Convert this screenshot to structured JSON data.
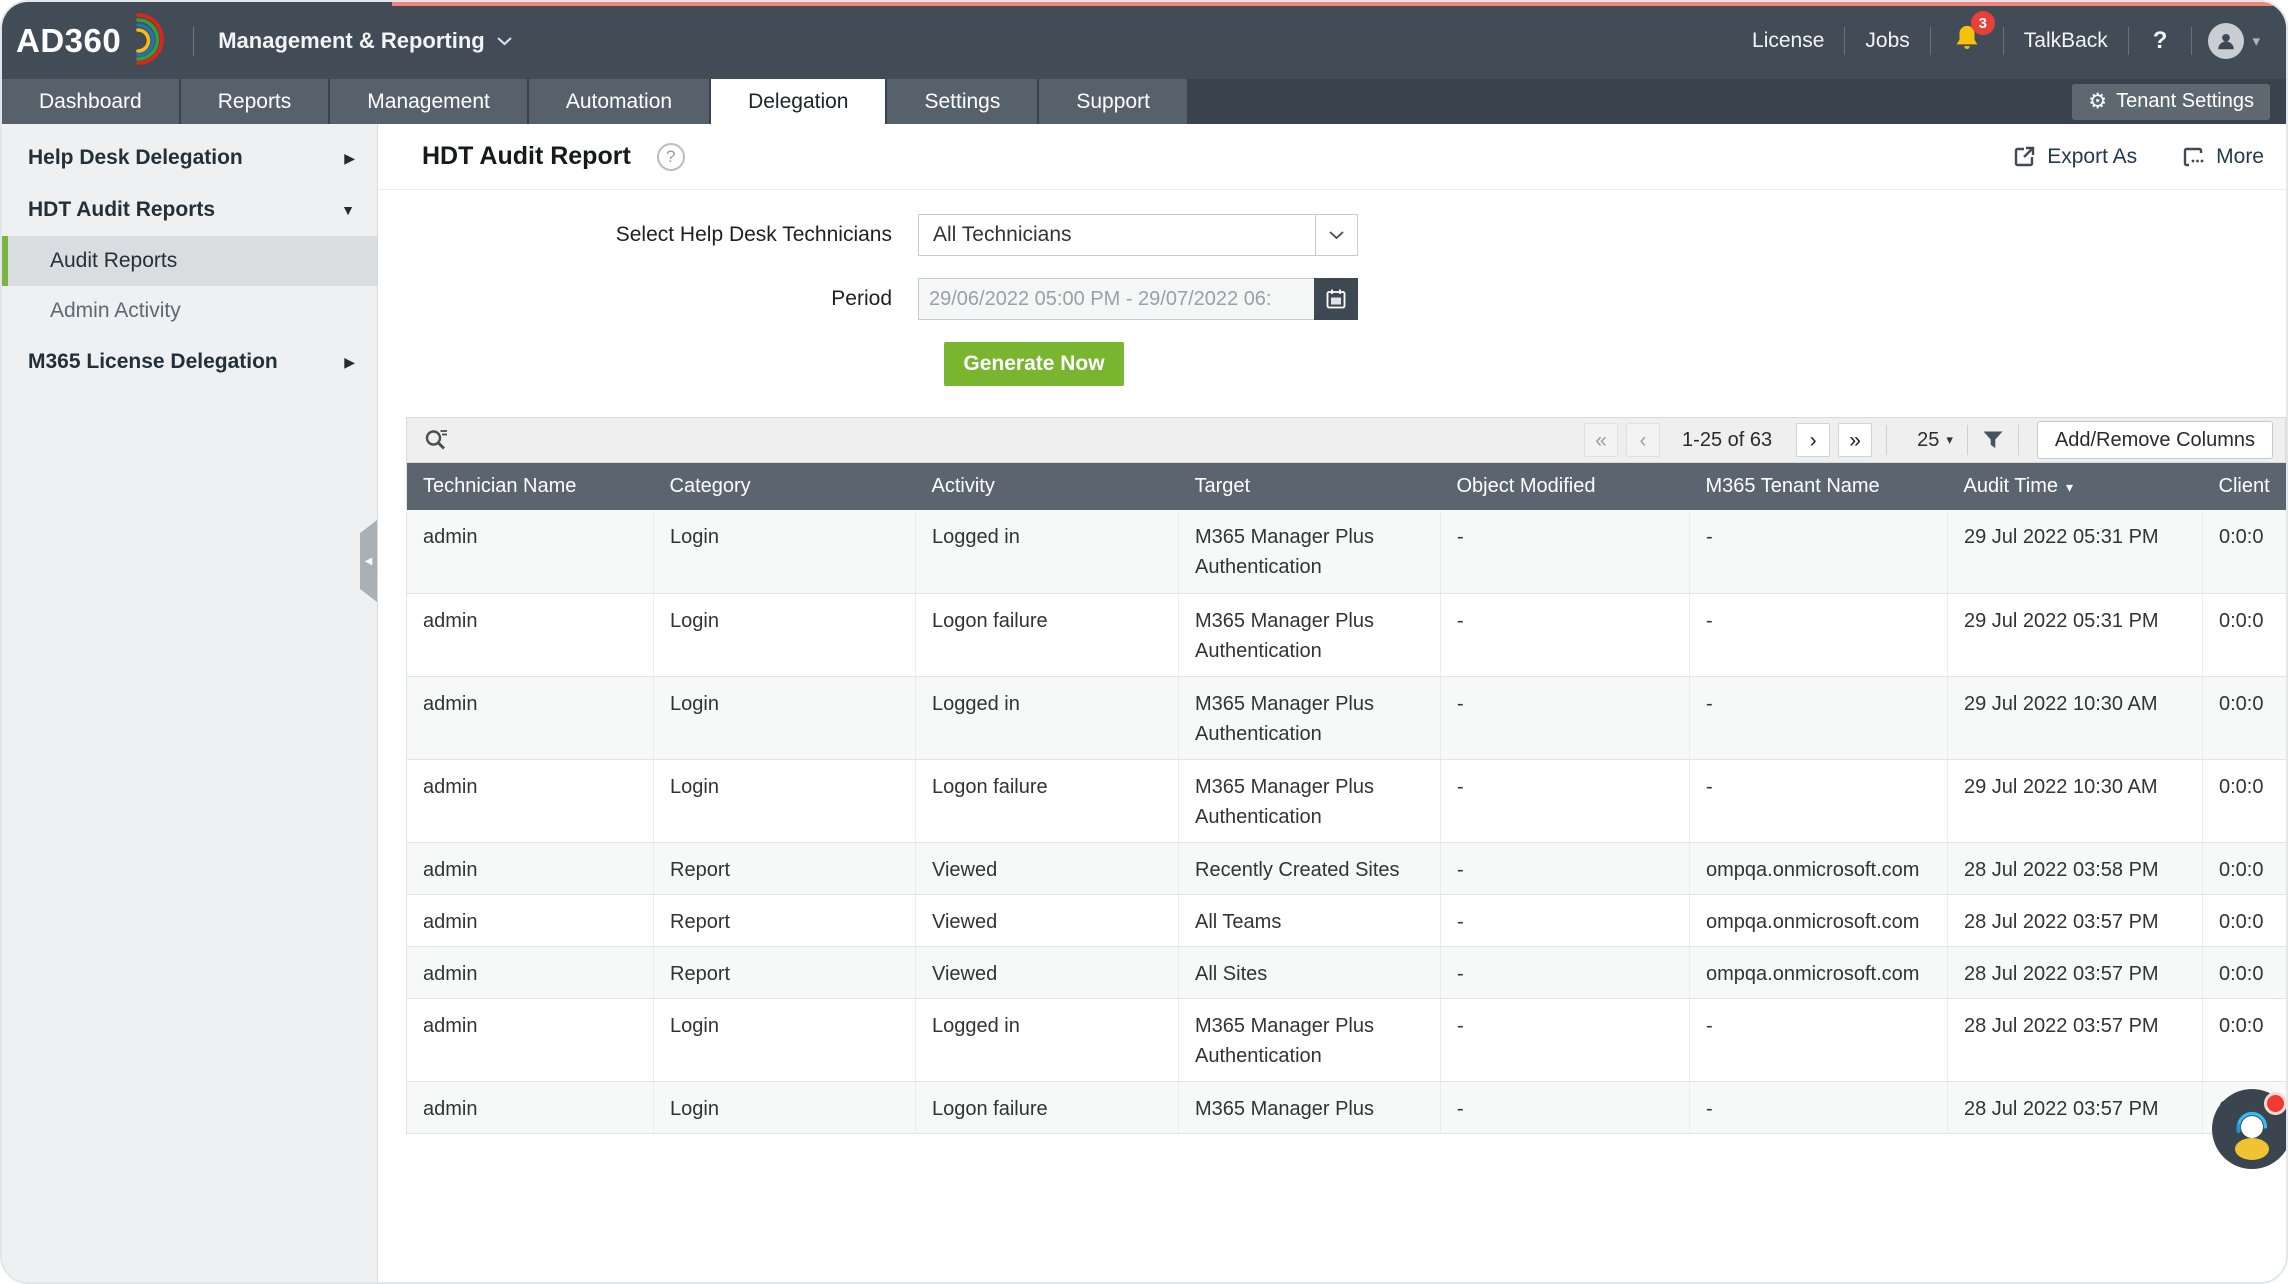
{
  "topbar": {
    "brand": "AD360",
    "product": "Management & Reporting",
    "license_label": "License",
    "jobs_label": "Jobs",
    "notification_count": "3",
    "talkback_label": "TalkBack",
    "help_label": "?"
  },
  "tabs": [
    {
      "label": "Dashboard",
      "active": false
    },
    {
      "label": "Reports",
      "active": false
    },
    {
      "label": "Management",
      "active": false
    },
    {
      "label": "Automation",
      "active": false
    },
    {
      "label": "Delegation",
      "active": true
    },
    {
      "label": "Settings",
      "active": false
    },
    {
      "label": "Support",
      "active": false
    }
  ],
  "tenant_settings_label": "Tenant Settings",
  "sidebar": {
    "items": [
      {
        "label": "Help Desk Delegation",
        "type": "group",
        "state": "collapsed"
      },
      {
        "label": "HDT Audit Reports",
        "type": "group",
        "state": "expanded"
      },
      {
        "label": "Audit Reports",
        "type": "sub",
        "selected": true
      },
      {
        "label": "Admin Activity",
        "type": "sub",
        "selected": false
      },
      {
        "label": "M365 License Delegation",
        "type": "group",
        "state": "collapsed"
      }
    ]
  },
  "report": {
    "title": "HDT Audit Report",
    "export_label": "Export As",
    "more_label": "More"
  },
  "form": {
    "technician_label": "Select Help Desk Technicians",
    "technician_value": "All Technicians",
    "period_label": "Period",
    "period_value": "29/06/2022 05:00 PM - 29/07/2022 06:",
    "generate_label": "Generate Now"
  },
  "toolbar": {
    "pagination": "1-25 of 63",
    "page_size": "25",
    "add_remove_label": "Add/Remove Columns"
  },
  "table": {
    "columns": [
      "Technician Name",
      "Category",
      "Activity",
      "Target",
      "Object Modified",
      "M365 Tenant Name",
      "Audit Time",
      "Client"
    ],
    "sort_column": "Audit Time",
    "rows": [
      {
        "tall": true,
        "cells": [
          "admin",
          "Login",
          "Logged in",
          "M365 Manager Plus Authentication",
          "-",
          "-",
          "29 Jul 2022 05:31 PM",
          "0:0:0"
        ]
      },
      {
        "tall": true,
        "cells": [
          "admin",
          "Login",
          "Logon failure",
          "M365 Manager Plus Authentication",
          "-",
          "-",
          "29 Jul 2022 05:31 PM",
          "0:0:0"
        ]
      },
      {
        "tall": true,
        "cells": [
          "admin",
          "Login",
          "Logged in",
          "M365 Manager Plus Authentication",
          "-",
          "-",
          "29 Jul 2022 10:30 AM",
          "0:0:0"
        ]
      },
      {
        "tall": true,
        "cells": [
          "admin",
          "Login",
          "Logon failure",
          "M365 Manager Plus Authentication",
          "-",
          "-",
          "29 Jul 2022 10:30 AM",
          "0:0:0"
        ]
      },
      {
        "tall": false,
        "cells": [
          "admin",
          "Report",
          "Viewed",
          "Recently Created Sites",
          "-",
          "ompqa.onmicrosoft.com",
          "28 Jul 2022 03:58 PM",
          "0:0:0"
        ]
      },
      {
        "tall": false,
        "cells": [
          "admin",
          "Report",
          "Viewed",
          "All Teams",
          "-",
          "ompqa.onmicrosoft.com",
          "28 Jul 2022 03:57 PM",
          "0:0:0"
        ]
      },
      {
        "tall": false,
        "cells": [
          "admin",
          "Report",
          "Viewed",
          "All Sites",
          "-",
          "ompqa.onmicrosoft.com",
          "28 Jul 2022 03:57 PM",
          "0:0:0"
        ]
      },
      {
        "tall": true,
        "cells": [
          "admin",
          "Login",
          "Logged in",
          "M365 Manager Plus Authentication",
          "-",
          "-",
          "28 Jul 2022 03:57 PM",
          "0:0:0"
        ]
      },
      {
        "tall": false,
        "cells": [
          "admin",
          "Login",
          "Logon failure",
          "M365 Manager Plus",
          "-",
          "-",
          "28 Jul 2022 03:57 PM",
          "0:0:0"
        ]
      }
    ]
  },
  "icons": {
    "chevron_right": "▶",
    "chevron_down_small": "▼",
    "chevron_left_small": "◀",
    "caret_down": "▾",
    "first_page": "«",
    "prev_page": "‹",
    "next_page": "›",
    "last_page": "»",
    "gear": "⚙",
    "question": "?"
  },
  "colors": {
    "header_dark": "#414c57",
    "tabbar_dark": "#39434d",
    "tab_inactive": "#57616b",
    "table_header": "#5b6570",
    "accent_green": "#79b52e",
    "sidebar_selected_bar": "#7db343",
    "notification_red": "#e84038",
    "loading_bar_red": "#f2847c"
  }
}
